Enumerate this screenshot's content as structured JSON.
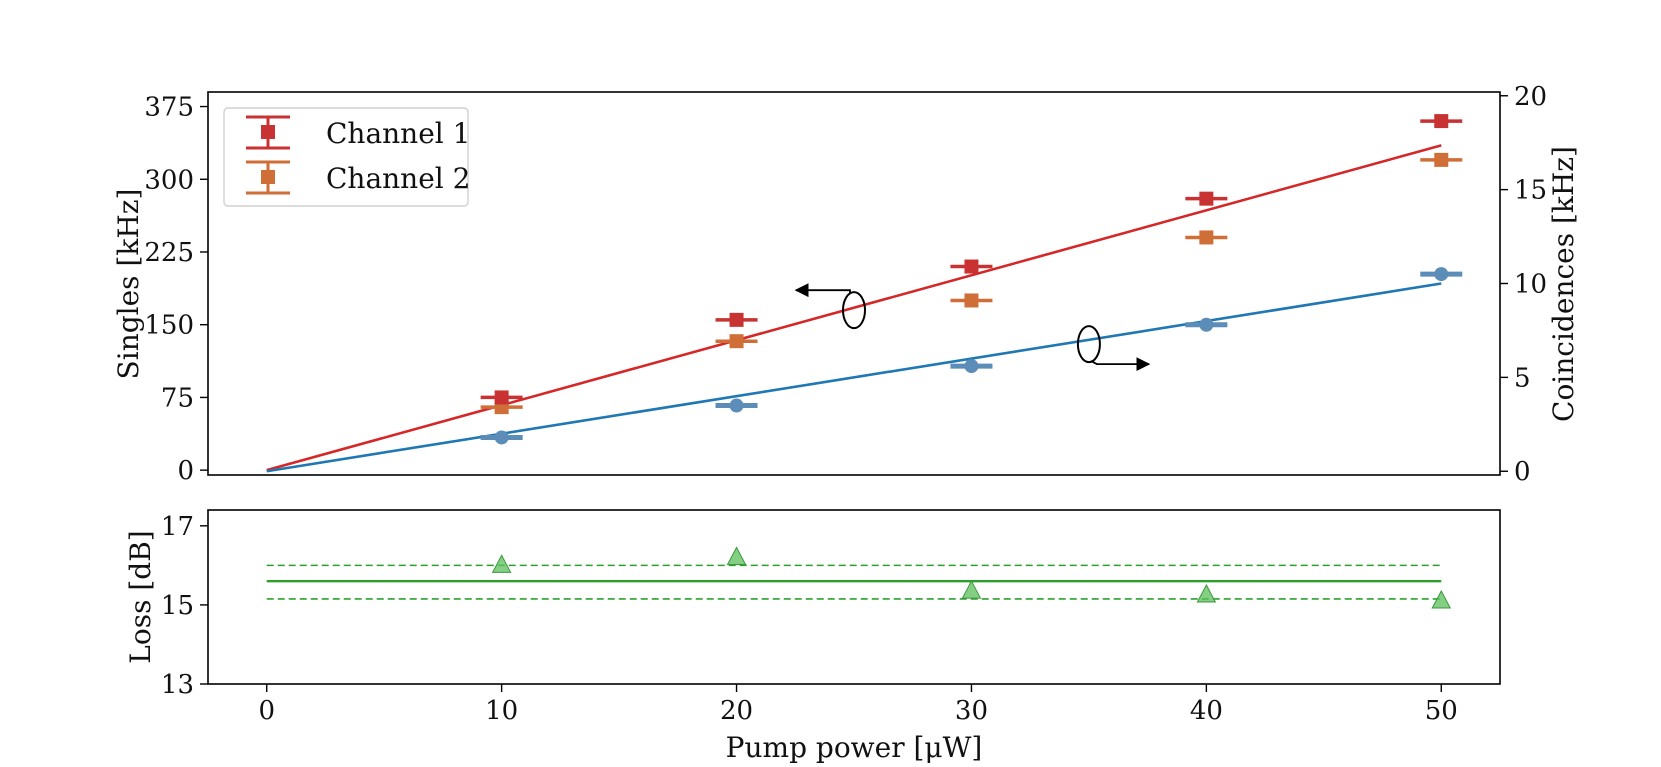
{
  "chart_data": [
    {
      "type": "scatter",
      "panel": "top",
      "xlabel": "",
      "xlim": [
        -2.5,
        52.5
      ],
      "ylabel": "Singles [kHz]",
      "ylim": [
        -5,
        390
      ],
      "yticks": [
        0,
        75,
        150,
        225,
        300,
        375
      ],
      "ylabel_right": "Coincidences [kHz]",
      "ylim_right": [
        -0.2,
        20.2
      ],
      "yticks_right": [
        0,
        5,
        10,
        15,
        20
      ],
      "grid": false,
      "legend_position": "top-left",
      "x": [
        10,
        20,
        30,
        40,
        50
      ],
      "series": [
        {
          "name": "Channel 1",
          "axis": "left",
          "marker": "square",
          "color": "#c83232",
          "values": [
            75,
            155,
            210,
            280,
            360
          ],
          "error": [
            5,
            6,
            6,
            6,
            3
          ],
          "in_legend": true
        },
        {
          "name": "Channel 2",
          "axis": "left",
          "marker": "square",
          "color": "#d06e38",
          "values": [
            65,
            133,
            175,
            240,
            320
          ],
          "error": [
            5,
            6,
            6,
            6,
            3
          ],
          "in_legend": true
        },
        {
          "name": "Coincidences",
          "axis": "right",
          "marker": "circle",
          "color": "#5b8db8",
          "values": [
            1.8,
            3.5,
            5.6,
            7.8,
            10.5
          ],
          "error": [
            0.1,
            0.1,
            0.1,
            0.1,
            0.1
          ],
          "in_legend": false
        }
      ],
      "fits": [
        {
          "axis": "left",
          "color": "#d62728",
          "x": [
            0,
            50
          ],
          "y": [
            0,
            335
          ]
        },
        {
          "axis": "right",
          "color": "#1f77b4",
          "x": [
            0,
            50
          ],
          "y": [
            0,
            10
          ]
        }
      ],
      "annotations": [
        {
          "type": "axis-indicator",
          "direction": "left",
          "x": 25,
          "y": 165,
          "axis": "left"
        },
        {
          "type": "axis-indicator",
          "direction": "right",
          "x": 35,
          "y": 130,
          "axis": "left"
        }
      ]
    },
    {
      "type": "scatter",
      "panel": "bottom",
      "xlabel": "Pump power [μW]",
      "xlim": [
        -2.5,
        52.5
      ],
      "xticks": [
        0,
        10,
        20,
        30,
        40,
        50
      ],
      "ylabel": "Loss [dB]",
      "ylim": [
        13,
        17.4
      ],
      "yticks": [
        13,
        15,
        17
      ],
      "grid": false,
      "series": [
        {
          "name": "Loss",
          "marker": "triangle",
          "color": "#5cbf5c",
          "x": [
            10,
            20,
            30,
            40,
            50
          ],
          "values": [
            16.0,
            16.2,
            15.35,
            15.25,
            15.1
          ]
        }
      ],
      "mean_line": {
        "value": 15.6,
        "x": [
          0,
          50
        ],
        "color": "#2ca02c"
      },
      "band_lines": {
        "values": [
          16.0,
          15.15
        ],
        "x": [
          0,
          50
        ],
        "color": "#2ca02c",
        "style": "dashed"
      }
    }
  ]
}
